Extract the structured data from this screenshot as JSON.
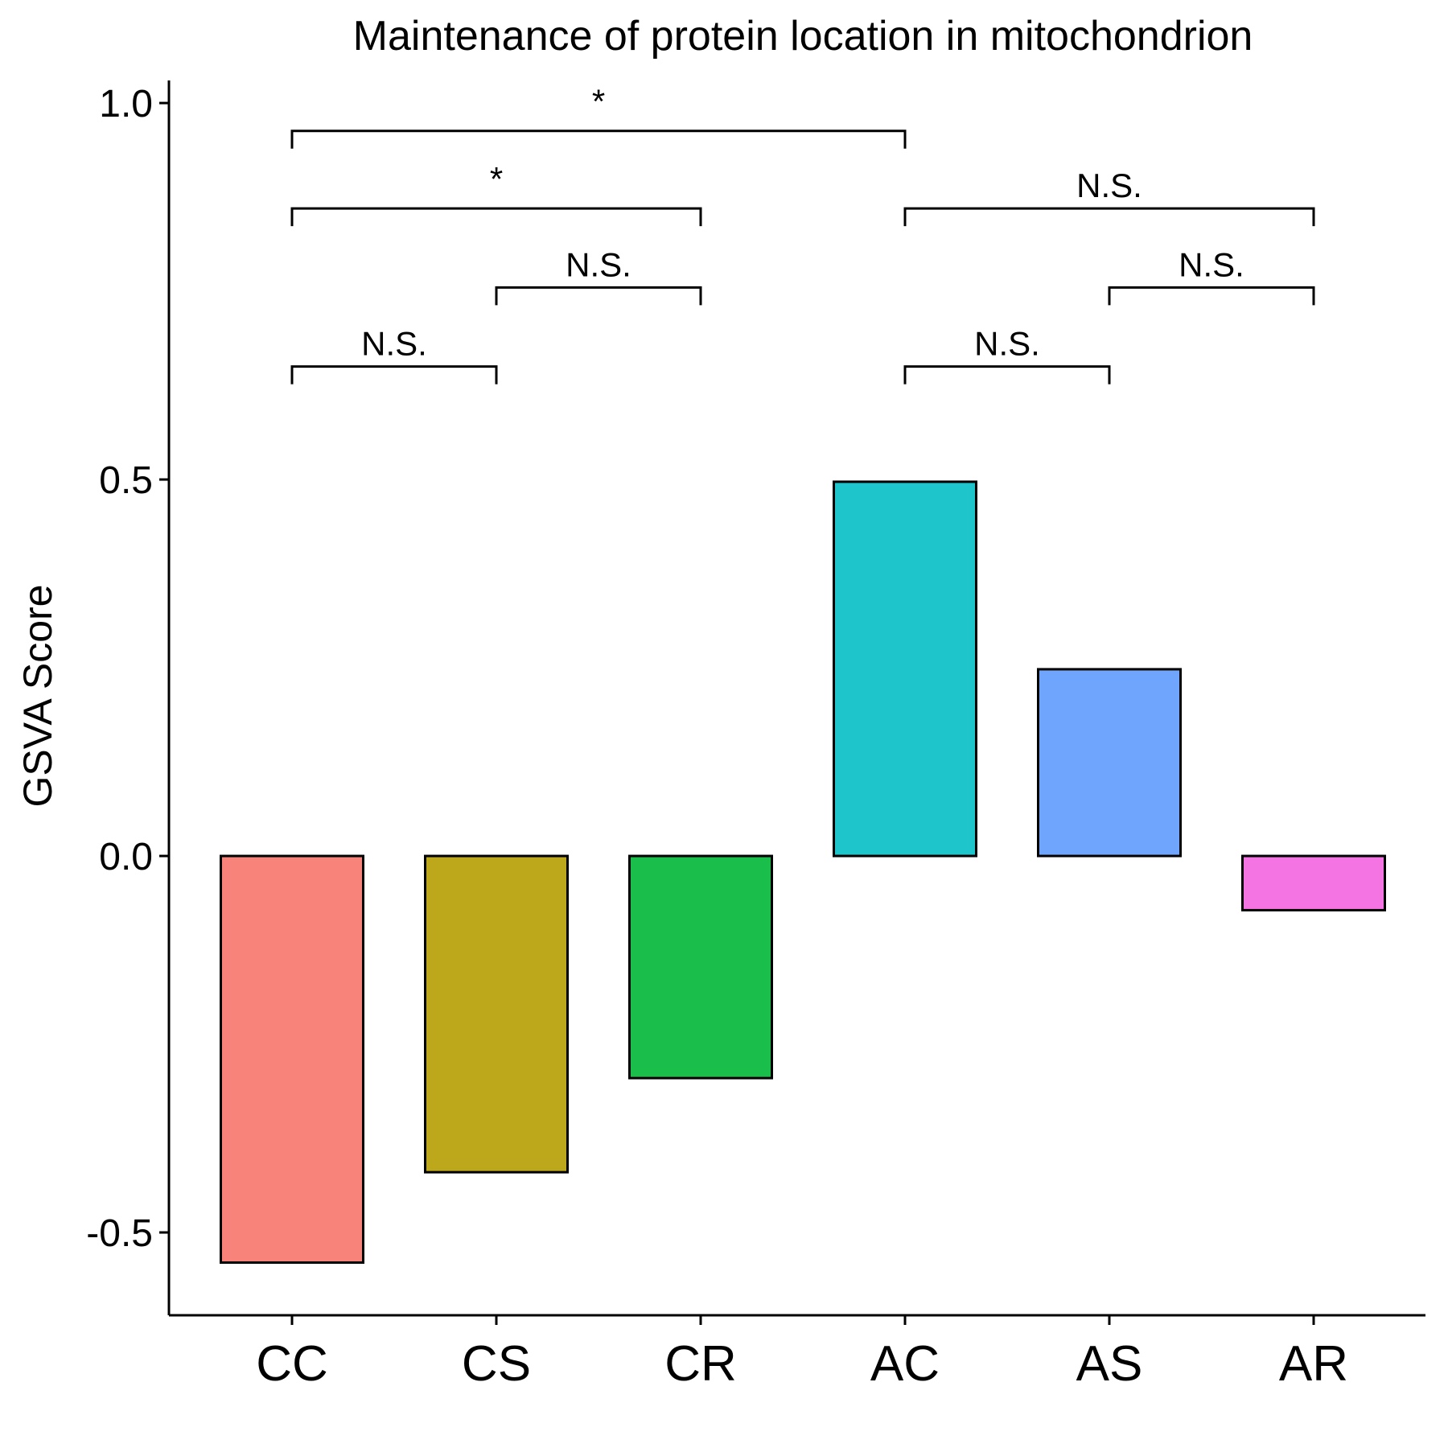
{
  "chart_data": {
    "type": "bar",
    "title": "Maintenance of protein location in mitochondrion",
    "xlabel": "",
    "ylabel": "GSVA Score",
    "categories": [
      "CC",
      "CS",
      "CR",
      "AC",
      "AS",
      "AR"
    ],
    "values": [
      -0.54,
      -0.42,
      -0.295,
      0.497,
      0.248,
      -0.072
    ],
    "colors": [
      "#F8837A",
      "#BDA71B",
      "#1ABE4B",
      "#1EC5CB",
      "#70A5FE",
      "#F574E3"
    ],
    "ylim": [
      -0.61,
      1.03
    ],
    "yticks": [
      -0.5,
      0.0,
      0.5,
      1.0
    ],
    "ytick_labels": [
      "-0.5",
      "0.0",
      "0.5",
      "1.0"
    ],
    "grid": false,
    "legend": "none",
    "comparisons": [
      {
        "from": "CC",
        "to": "CS",
        "label": "N.S.",
        "y": 0.65
      },
      {
        "from": "CS",
        "to": "CR",
        "label": "N.S.",
        "y": 0.755
      },
      {
        "from": "CC",
        "to": "CR",
        "label": "*",
        "y": 0.86
      },
      {
        "from": "CC",
        "to": "AC",
        "label": "*",
        "y": 0.963
      },
      {
        "from": "AC",
        "to": "AS",
        "label": "N.S.",
        "y": 0.65
      },
      {
        "from": "AS",
        "to": "AR",
        "label": "N.S.",
        "y": 0.755
      },
      {
        "from": "AC",
        "to": "AR",
        "label": "N.S.",
        "y": 0.86
      }
    ]
  }
}
